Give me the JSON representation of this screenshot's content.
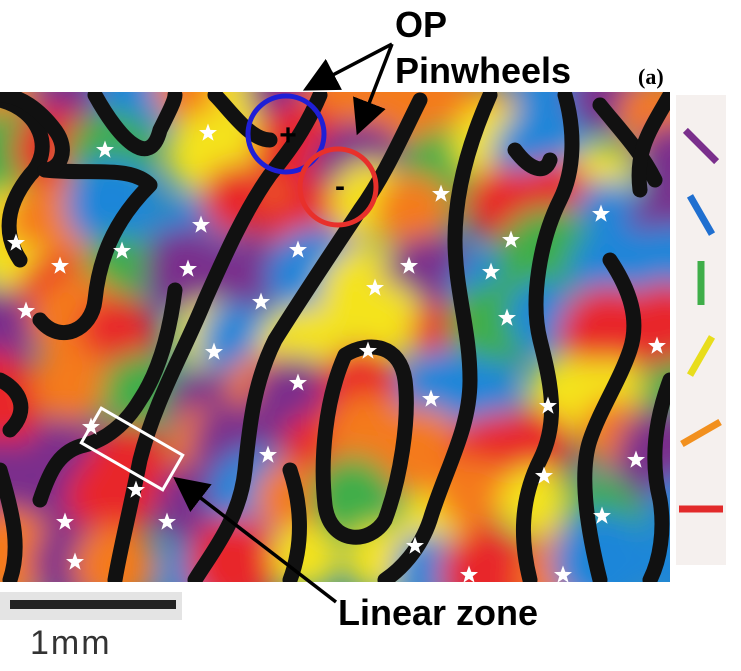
{
  "labels": {
    "op": "OP",
    "pinwheels": "Pinwheels",
    "panel": "(a)",
    "linear_zone": "Linear zone",
    "scale": "1mm",
    "plus": "+",
    "minus": "-"
  },
  "colors": {
    "map_stops": [
      "#e8262b",
      "#f47a1f",
      "#f4e31b",
      "#3fae49",
      "#1f86d9",
      "#7a2f8c"
    ],
    "iso_contour": "#111111",
    "positive_pinwheel_ring": "#1f1fd6",
    "negative_pinwheel_ring": "#e8302b",
    "star": "#ffffff",
    "linear_zone_box": "#ffffff"
  },
  "orientation_legend": [
    {
      "name": "purple-bar",
      "color": "#7a2f8c",
      "angle_deg": 135
    },
    {
      "name": "blue-bar",
      "color": "#1f6fd0",
      "angle_deg": 120
    },
    {
      "name": "green-bar",
      "color": "#3fae49",
      "angle_deg": 90
    },
    {
      "name": "yellow-bar",
      "color": "#e8dd1b",
      "angle_deg": 60
    },
    {
      "name": "orange-bar",
      "color": "#f2901e",
      "angle_deg": 30
    },
    {
      "name": "red-bar",
      "color": "#e22a2a",
      "angle_deg": 0
    }
  ],
  "icons": {
    "pinwheel_marker": "star-icon",
    "pinwheel_highlight": "circle-icon",
    "pointer": "arrow-icon"
  }
}
